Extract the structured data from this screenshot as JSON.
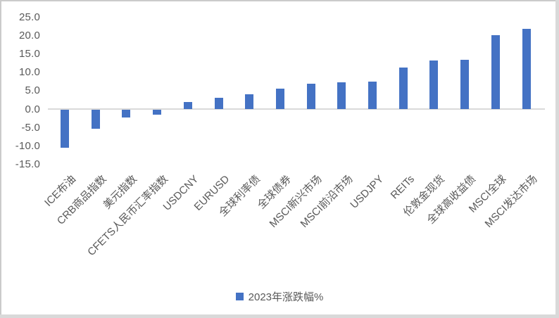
{
  "chart_data": {
    "type": "bar",
    "title": "",
    "xlabel": "",
    "ylabel": "",
    "series_name": "2023年涨跌幅%",
    "categories": [
      "ICE布油",
      "CRB商品指数",
      "美元指数",
      "CFETS人民币汇率指数",
      "USDCNY",
      "EURUSD",
      "全球利率债",
      "全球债券",
      "MSCI新兴市场",
      "MSCI前沿市场",
      "USDJPY",
      "REITs",
      "伦敦金现货",
      "全球高收益债",
      "MSCI全球",
      "MSCI发达市场"
    ],
    "values": [
      -10.4,
      -5.2,
      -2.2,
      -1.4,
      2.0,
      3.1,
      4.2,
      5.7,
      7.0,
      7.3,
      7.5,
      11.4,
      13.3,
      13.5,
      20.1,
      21.8
    ],
    "ylim": [
      -15.0,
      25.0
    ],
    "ytick_step": 5.0,
    "ytick_labels": [
      "25.0",
      "20.0",
      "15.0",
      "10.0",
      "5.0",
      "0.0",
      "-5.0",
      "-10.0",
      "-15.0"
    ],
    "grid": false,
    "legend_position": "bottom-center",
    "bar_color": "#4472C4",
    "axis_line_color": "#D9D9D9",
    "text_color": "#595959",
    "background_color": "#FFFFFF",
    "x_label_rotation_deg": 45
  },
  "legend": {
    "label": "2023年涨跌幅%",
    "marker_color": "#4472C4"
  }
}
